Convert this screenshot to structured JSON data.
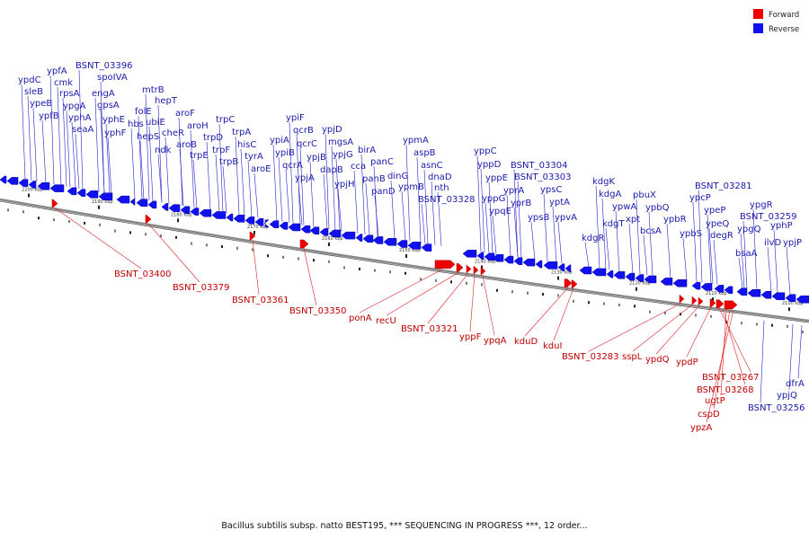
{
  "legend": [
    {
      "label": "Forward",
      "color": "#ee0000"
    },
    {
      "label": "Reverse",
      "color": "#1111ee"
    }
  ],
  "caption": "Bacillus subtilis subsp. natto BEST195, *** SEQUENCING IN PROGRESS ***, 12 order...",
  "ticks": [
    "2200 kbp",
    "2190 kbp",
    "2180 kbp",
    "2170 kbp",
    "2160 kbp",
    "2150 kbp",
    "2140 kbp",
    "2130 kbp",
    "2120 kbp",
    "2110 kbp",
    "2100 kbp"
  ],
  "reverse_labels": [
    "ypdC",
    "sleB",
    "ypeB",
    "ypfB",
    "ypfA",
    "cmk",
    "rpsA",
    "ypgA",
    "yphA",
    "seaA",
    "BSNT_03396",
    "engA",
    "gpsA",
    "yphE",
    "yphF",
    "spoIVA",
    "mtrB",
    "folE",
    "hbs",
    "ubiE",
    "hepS",
    "hepT",
    "ndk",
    "cheR",
    "aroF",
    "aroB",
    "aroH",
    "trpE",
    "trpD",
    "trpC",
    "trpF",
    "trpB",
    "trpA",
    "hisC",
    "tyrA",
    "aroE",
    "ypiA",
    "ypiB",
    "ypiF",
    "qcrB",
    "qcrC",
    "qcrA",
    "ypjB",
    "ypjA",
    "ypjD",
    "mgsA",
    "ypjG",
    "dapB",
    "ypjH",
    "birA",
    "cca",
    "panB",
    "panC",
    "panD",
    "dinG",
    "ypmA",
    "aspB",
    "asnC",
    "ypmB",
    "dnaD",
    "nth",
    "BSNT_03328",
    "yppC",
    "yppD",
    "yppE",
    "yppG",
    "ypqE",
    "yprA",
    "yprB",
    "BSNT_03304",
    "BSNT_03303",
    "ypsB",
    "ypsC",
    "yptA",
    "ypvA",
    "kdgK",
    "kdgA",
    "kdgR",
    "kdgT",
    "ypwA",
    "xpt",
    "pbuX",
    "bcsA",
    "ypbQ",
    "ypbR",
    "ypbS",
    "BSNT_03281",
    "ypcP",
    "ypeP",
    "ypeQ",
    "degR",
    "bsaA",
    "ypgR",
    "BSNT_03259",
    "ypgQ",
    "yphP",
    "ilvD",
    "ypjP",
    "dfrA",
    "ypjQ",
    "BSNT_03256"
  ],
  "forward_labels": [
    "BSNT_03400",
    "BSNT_03379",
    "BSNT_03361",
    "BSNT_03350",
    "ponA",
    "recU",
    "BSNT_03321",
    "yppF",
    "ypqA",
    "kduD",
    "kduI",
    "BSNT_03283",
    "sspL",
    "ypdQ",
    "ypdP",
    "BSNT_03267",
    "BSNT_03268",
    "ugtP",
    "cspD",
    "ypzA"
  ]
}
